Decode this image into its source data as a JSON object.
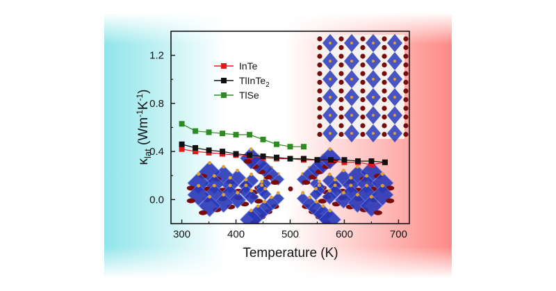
{
  "chart_data": {
    "type": "line",
    "title": "",
    "xlabel": "Temperature (K)",
    "ylabel": "κlat (Wm-1K-1)",
    "ylabel_parts": {
      "kappa": "κ",
      "sub": "lat",
      "main": " (Wm",
      "exp1": "-1",
      "mid": "K",
      "exp2": "-1",
      "end": ")"
    },
    "xlim": [
      280,
      720
    ],
    "ylim": [
      -0.2,
      1.4
    ],
    "xticks": [
      "300",
      "400",
      "500",
      "600",
      "700"
    ],
    "yticks": [
      "0.0",
      "0.4",
      "0.8",
      "1.2"
    ],
    "legend_position": "top-left",
    "grid": false,
    "series": [
      {
        "name": "InTe",
        "legend_parts": {
          "main": "InTe",
          "sub": ""
        },
        "color": "#e31a1c",
        "x": [
          300,
          325,
          350,
          375,
          400,
          425,
          450,
          475,
          500,
          525,
          550,
          575,
          600,
          625,
          650,
          675
        ],
        "y": [
          0.42,
          0.4,
          0.39,
          0.38,
          0.37,
          0.36,
          0.35,
          0.34,
          0.34,
          0.33,
          0.33,
          0.32,
          0.31,
          0.31,
          0.29,
          0.31
        ]
      },
      {
        "name": "TlInTe2",
        "legend_parts": {
          "main": "TlInTe",
          "sub": "2"
        },
        "color": "#111111",
        "x": [
          300,
          325,
          350,
          375,
          400,
          425,
          450,
          475,
          500,
          525,
          550,
          575,
          600,
          625,
          650,
          675
        ],
        "y": [
          0.46,
          0.43,
          0.41,
          0.4,
          0.38,
          0.37,
          0.36,
          0.35,
          0.34,
          0.34,
          0.33,
          0.33,
          0.33,
          0.32,
          0.32,
          0.31
        ]
      },
      {
        "name": "TlSe",
        "legend_parts": {
          "main": "TlSe",
          "sub": ""
        },
        "color": "#2e8b22",
        "x": [
          300,
          325,
          350,
          375,
          400,
          425,
          450,
          475,
          500,
          525
        ],
        "y": [
          0.63,
          0.57,
          0.56,
          0.55,
          0.54,
          0.54,
          0.5,
          0.46,
          0.44,
          0.44
        ]
      }
    ],
    "background_colors": {
      "left": "#8fe5ea",
      "center": "#ffffff",
      "right": "#fd8a86"
    },
    "inset_colors": {
      "octahedron": "#2838b8",
      "atom_gold": "#e0a030",
      "atom_red": "#7a0a0a",
      "bond": "#9a9a9a"
    }
  }
}
